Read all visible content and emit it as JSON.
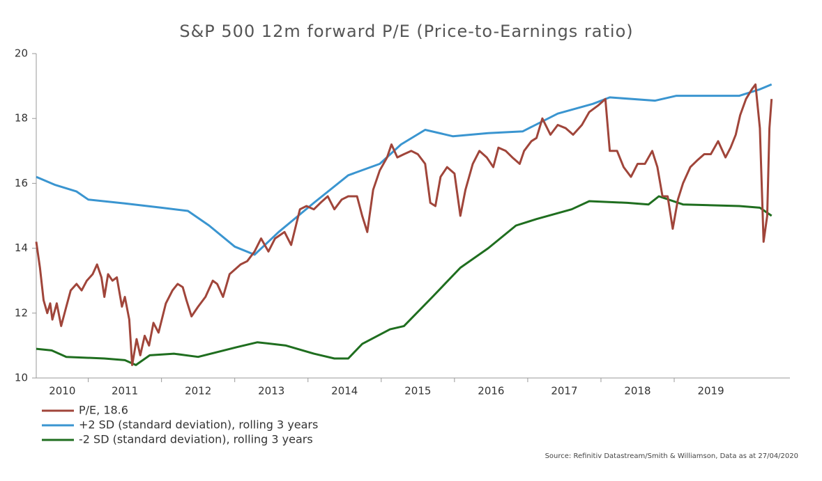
{
  "chart_data": {
    "type": "line",
    "title": "S&P 500 12m forward P/E (Price-to-Earnings ratio)",
    "source": "Source: Refinitiv Datastream/Smith & Williamson, Data as at 27/04/2020",
    "xlim": [
      2010.29,
      2020.58
    ],
    "xticks": [
      {
        "value": 2010,
        "label": "2010"
      },
      {
        "value": 2011,
        "label": "2011"
      },
      {
        "value": 2012,
        "label": "2012"
      },
      {
        "value": 2013,
        "label": "2013"
      },
      {
        "value": 2014,
        "label": "2014"
      },
      {
        "value": 2015,
        "label": "2015"
      },
      {
        "value": 2016,
        "label": "2016"
      },
      {
        "value": 2017,
        "label": "2017"
      },
      {
        "value": 2018,
        "label": "2018"
      },
      {
        "value": 2019,
        "label": "2019"
      }
    ],
    "ylim": [
      10,
      20
    ],
    "yticks": [
      10,
      12,
      14,
      16,
      18,
      20
    ],
    "legend": "bottom",
    "series": [
      {
        "name": "P/E, 18.6",
        "color": "#a0453a",
        "x": [
          2010.29,
          2010.34,
          2010.39,
          2010.44,
          2010.48,
          2010.51,
          2010.57,
          2010.63,
          2010.7,
          2010.76,
          2010.84,
          2010.91,
          2010.98,
          2011.06,
          2011.12,
          2011.18,
          2011.22,
          2011.27,
          2011.33,
          2011.39,
          2011.46,
          2011.5,
          2011.56,
          2011.6,
          2011.66,
          2011.71,
          2011.77,
          2011.83,
          2011.89,
          2011.96,
          2012.06,
          2012.15,
          2012.22,
          2012.29,
          2012.34,
          2012.41,
          2012.5,
          2012.6,
          2012.7,
          2012.76,
          2012.84,
          2012.93,
          2013.08,
          2013.17,
          2013.27,
          2013.36,
          2013.46,
          2013.55,
          2013.68,
          2013.77,
          2013.89,
          2013.98,
          2014.08,
          2014.17,
          2014.27,
          2014.36,
          2014.46,
          2014.55,
          2014.67,
          2014.74,
          2014.81,
          2014.89,
          2014.98,
          2015.08,
          2015.14,
          2015.22,
          2015.31,
          2015.41,
          2015.5,
          2015.6,
          2015.67,
          2015.74,
          2015.81,
          2015.9,
          2016.0,
          2016.08,
          2016.15,
          2016.25,
          2016.34,
          2016.44,
          2016.53,
          2016.6,
          2016.7,
          2016.79,
          2016.89,
          2016.95,
          2017.05,
          2017.12,
          2017.2,
          2017.31,
          2017.41,
          2017.52,
          2017.62,
          2017.74,
          2017.84,
          2017.96,
          2018.06,
          2018.12,
          2018.22,
          2018.31,
          2018.41,
          2018.5,
          2018.6,
          2018.7,
          2018.77,
          2018.84,
          2018.91,
          2018.98,
          2019.05,
          2019.12,
          2019.22,
          2019.31,
          2019.41,
          2019.5,
          2019.6,
          2019.7,
          2019.77,
          2019.84,
          2019.9,
          2019.98,
          2020.06,
          2020.11,
          2020.17,
          2020.22,
          2020.27,
          2020.3,
          2020.33
        ],
        "values": [
          14.2,
          13.4,
          12.4,
          12.0,
          12.3,
          11.8,
          12.3,
          11.6,
          12.2,
          12.7,
          12.9,
          12.7,
          13.0,
          13.2,
          13.5,
          13.1,
          12.5,
          13.2,
          13.0,
          13.1,
          12.2,
          12.5,
          11.8,
          10.4,
          11.2,
          10.7,
          11.3,
          11.0,
          11.7,
          11.4,
          12.3,
          12.7,
          12.9,
          12.8,
          12.4,
          11.9,
          12.2,
          12.5,
          13.0,
          12.9,
          12.5,
          13.2,
          13.5,
          13.6,
          13.9,
          14.3,
          13.9,
          14.3,
          14.5,
          14.1,
          15.2,
          15.3,
          15.2,
          15.4,
          15.6,
          15.2,
          15.5,
          15.6,
          15.6,
          15.0,
          14.5,
          15.8,
          16.4,
          16.8,
          17.2,
          16.8,
          16.9,
          17.0,
          16.9,
          16.6,
          15.4,
          15.3,
          16.2,
          16.5,
          16.3,
          15.0,
          15.8,
          16.6,
          17.0,
          16.8,
          16.5,
          17.1,
          17.0,
          16.8,
          16.6,
          17.0,
          17.3,
          17.4,
          18.0,
          17.5,
          17.8,
          17.7,
          17.5,
          17.8,
          18.2,
          18.4,
          18.6,
          17.0,
          17.0,
          16.5,
          16.2,
          16.6,
          16.6,
          17.0,
          16.5,
          15.6,
          15.6,
          14.6,
          15.5,
          16.0,
          16.5,
          16.7,
          16.9,
          16.9,
          17.3,
          16.8,
          17.1,
          17.5,
          18.1,
          18.6,
          18.9,
          19.05,
          17.7,
          14.2,
          15.0,
          17.7,
          18.6
        ]
      },
      {
        "name": "+2 SD (standard deviation), rolling 3 years",
        "color": "#3a95d0",
        "x": [
          2010.29,
          2010.55,
          2010.84,
          2011.0,
          2011.5,
          2012.0,
          2012.36,
          2012.65,
          2013.0,
          2013.27,
          2013.6,
          2014.08,
          2014.55,
          2014.98,
          2015.27,
          2015.6,
          2015.98,
          2016.46,
          2016.93,
          2017.41,
          2017.89,
          2018.12,
          2018.74,
          2019.03,
          2019.89,
          2020.17,
          2020.33
        ],
        "values": [
          16.2,
          15.95,
          15.75,
          15.5,
          15.38,
          15.25,
          15.15,
          14.7,
          14.05,
          13.8,
          14.5,
          15.4,
          16.25,
          16.6,
          17.2,
          17.65,
          17.45,
          17.55,
          17.6,
          18.15,
          18.45,
          18.65,
          18.55,
          18.7,
          18.7,
          18.9,
          19.05
        ]
      },
      {
        "name": "-2 SD (standard deviation), rolling 3 years",
        "color": "#1f6e1f",
        "x": [
          2010.29,
          2010.5,
          2010.7,
          2011.22,
          2011.5,
          2011.65,
          2011.84,
          2012.17,
          2012.5,
          2013.03,
          2013.31,
          2013.7,
          2014.08,
          2014.36,
          2014.55,
          2014.74,
          2015.12,
          2015.31,
          2015.7,
          2016.08,
          2016.46,
          2016.84,
          2017.12,
          2017.6,
          2017.84,
          2018.36,
          2018.65,
          2018.79,
          2019.12,
          2019.89,
          2020.17,
          2020.33
        ],
        "values": [
          10.9,
          10.85,
          10.65,
          10.6,
          10.55,
          10.4,
          10.7,
          10.75,
          10.65,
          10.95,
          11.1,
          11.0,
          10.75,
          10.6,
          10.6,
          11.05,
          11.5,
          11.6,
          12.5,
          13.4,
          14.0,
          14.7,
          14.9,
          15.2,
          15.45,
          15.4,
          15.35,
          15.6,
          15.35,
          15.3,
          15.25,
          15.0
        ]
      }
    ]
  }
}
